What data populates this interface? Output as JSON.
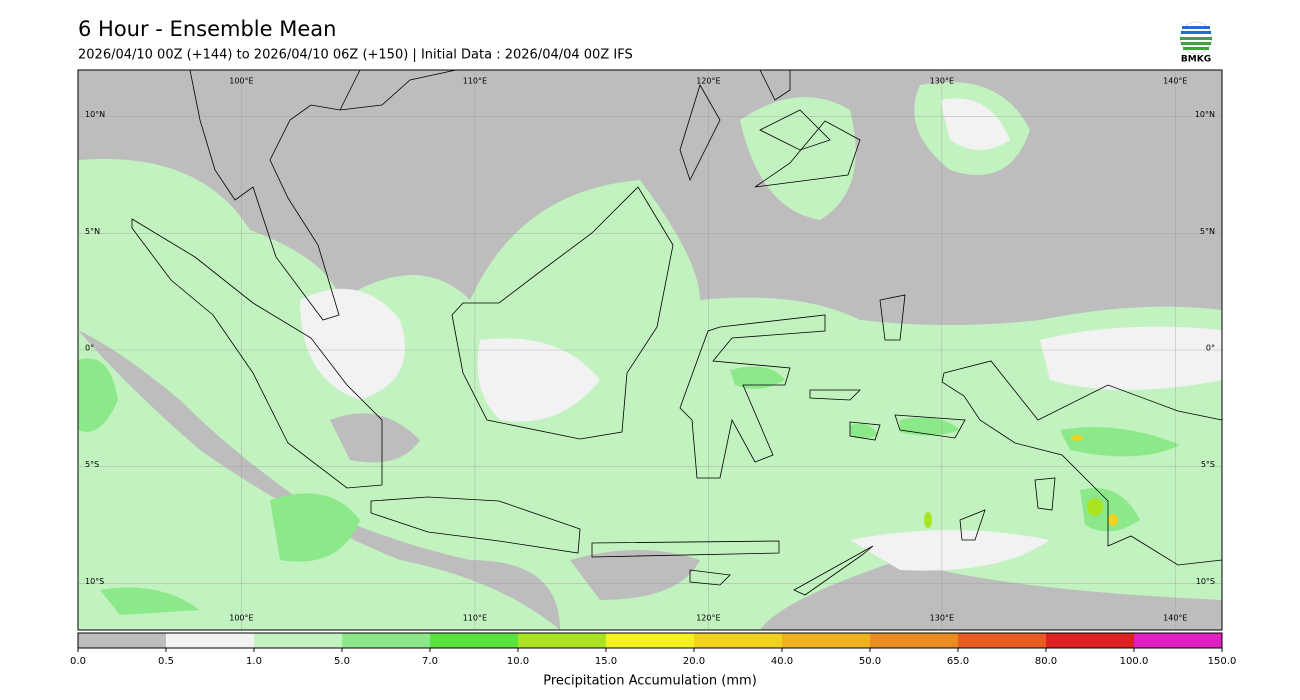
{
  "header": {
    "title": "6 Hour - Ensemble Mean",
    "subtitle": "2026/04/10 00Z (+144) to 2026/04/10 06Z (+150) | Initial Data : 2026/04/04 00Z IFS",
    "logo": "BMKG"
  },
  "map": {
    "lonlim": [
      93,
      142
    ],
    "latlim": [
      -12,
      12
    ],
    "lon_ticks": [
      {
        "value": 100,
        "label": "100°E"
      },
      {
        "value": 110,
        "label": "110°E"
      },
      {
        "value": 120,
        "label": "120°E"
      },
      {
        "value": 130,
        "label": "130°E"
      },
      {
        "value": 140,
        "label": "140°E"
      }
    ],
    "lat_ticks": [
      {
        "value": 10,
        "label": "10°N"
      },
      {
        "value": 5,
        "label": "5°N"
      },
      {
        "value": 0,
        "label": "0°"
      },
      {
        "value": -5,
        "label": "5°S"
      },
      {
        "value": -10,
        "label": "10°S"
      }
    ]
  },
  "colorbar": {
    "label": "Precipitation Accumulation (mm)",
    "bounds": [
      {
        "value": 0,
        "label": "0.0"
      },
      {
        "value": 0.5,
        "label": "0.5"
      },
      {
        "value": 1,
        "label": "1.0"
      },
      {
        "value": 5,
        "label": "5.0"
      },
      {
        "value": 7,
        "label": "7.0"
      },
      {
        "value": 10,
        "label": "10.0"
      },
      {
        "value": 15,
        "label": "15.0"
      },
      {
        "value": 20,
        "label": "20.0"
      },
      {
        "value": 40,
        "label": "40.0"
      },
      {
        "value": 50,
        "label": "50.0"
      },
      {
        "value": 65,
        "label": "65.0"
      },
      {
        "value": 80,
        "label": "80.0"
      },
      {
        "value": 100,
        "label": "100.0"
      },
      {
        "value": 150,
        "label": "150.0"
      }
    ],
    "colors": [
      "#bdbdbd",
      "#f2f2f2",
      "#c2f2bf",
      "#8ce98a",
      "#5ce23e",
      "#a9e322",
      "#f4f21e",
      "#f1d21f",
      "#eeb21f",
      "#ea8c20",
      "#e75c20",
      "#e02121",
      "#e020c2"
    ]
  }
}
